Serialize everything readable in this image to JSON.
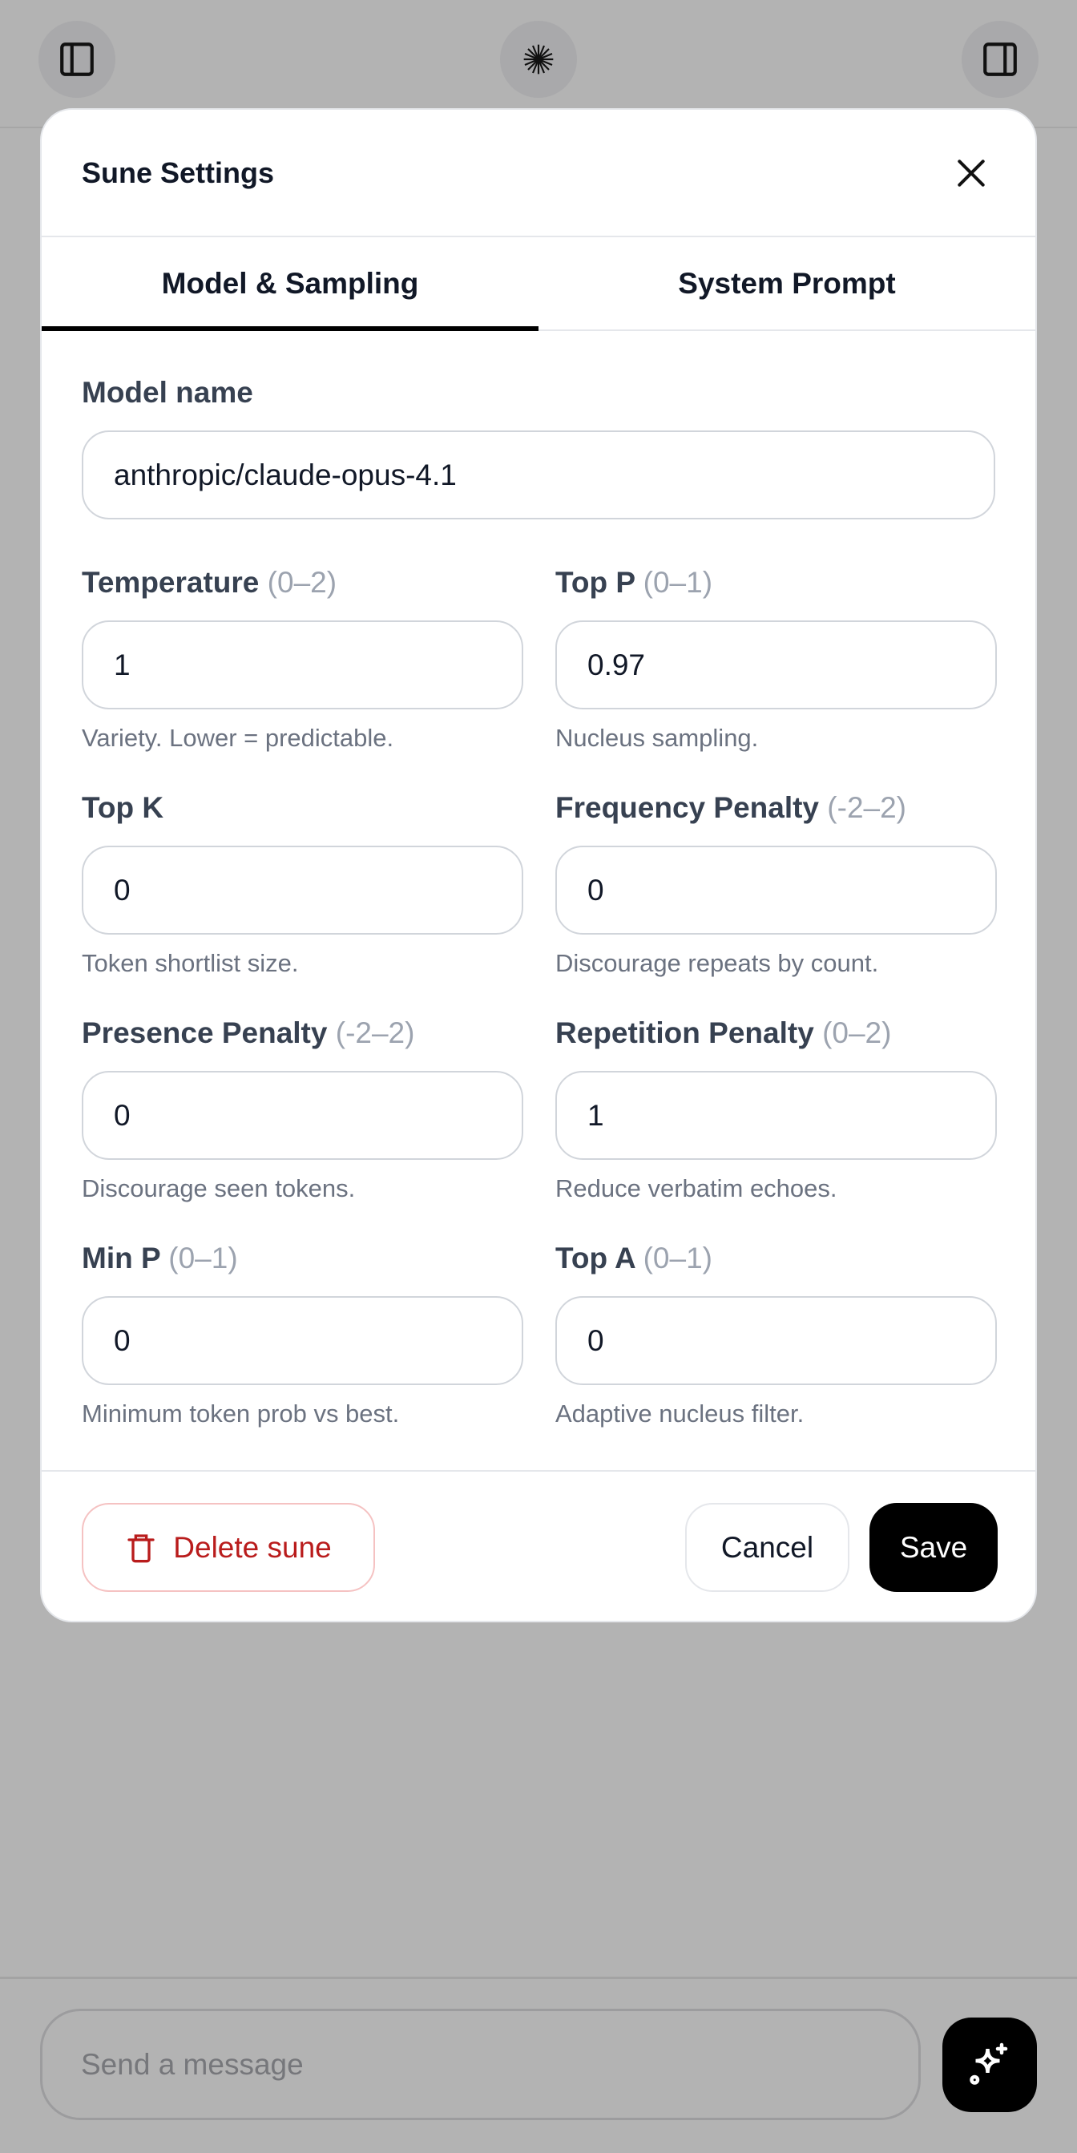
{
  "topbar": {
    "left_icon": "sidebar-left-icon",
    "center_icon": "starburst-logo-icon",
    "right_icon": "sidebar-right-icon"
  },
  "modal": {
    "title": "Sune Settings",
    "tabs": [
      {
        "label": "Model & Sampling",
        "active": true
      },
      {
        "label": "System Prompt",
        "active": false
      }
    ],
    "model": {
      "label": "Model name",
      "value": "anthropic/claude-opus-4.1"
    },
    "fields": [
      {
        "label": "Temperature",
        "range": "(0–2)",
        "value": "1",
        "hint": "Variety. Lower = predictable."
      },
      {
        "label": "Top P",
        "range": "(0–1)",
        "value": "0.97",
        "hint": "Nucleus sampling."
      },
      {
        "label": "Top K",
        "range": "",
        "value": "0",
        "hint": "Token shortlist size."
      },
      {
        "label": "Frequency Penalty",
        "range": "(-2–2)",
        "value": "0",
        "hint": "Discourage repeats by count."
      },
      {
        "label": "Presence Penalty",
        "range": "(-2–2)",
        "value": "0",
        "hint": "Discourage seen tokens."
      },
      {
        "label": "Repetition Penalty",
        "range": "(0–2)",
        "value": "1",
        "hint": "Reduce verbatim echoes."
      },
      {
        "label": "Min P",
        "range": "(0–1)",
        "value": "0",
        "hint": "Minimum token prob vs best."
      },
      {
        "label": "Top A",
        "range": "(0–1)",
        "value": "0",
        "hint": "Adaptive nucleus filter."
      }
    ],
    "footer": {
      "delete_label": "Delete sune",
      "cancel_label": "Cancel",
      "save_label": "Save"
    }
  },
  "composer": {
    "placeholder": "Send a message"
  },
  "colors": {
    "danger": "#b91c1c",
    "primary": "#000000",
    "overlay": "#b3b3b3"
  }
}
